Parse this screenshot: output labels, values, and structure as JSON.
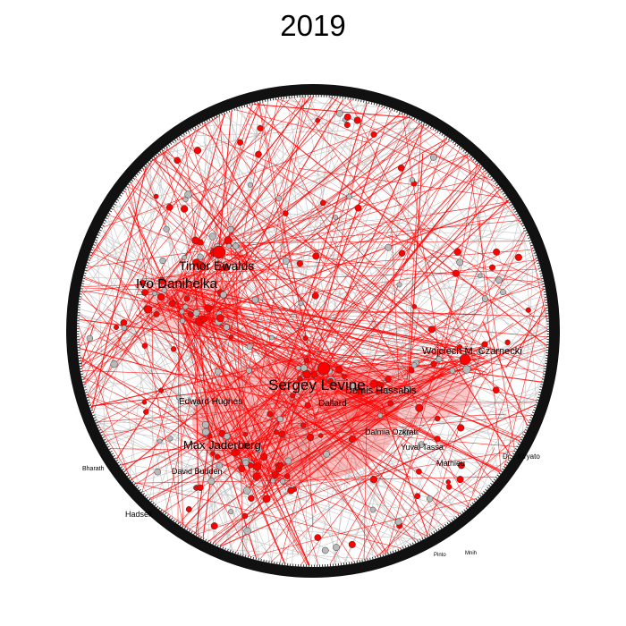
{
  "title": "2019",
  "colors": {
    "highlight": "#ff0000",
    "edge": "#c4c4c4",
    "node": "#b9b9b9",
    "ring": "#111111"
  },
  "labels": {
    "timor": "Timor Ewalds",
    "ivo": "Ivo Danihelka",
    "levine": "Sergey Levine",
    "czarnecki": "Wojciech M. Czarnecki",
    "hassabis": "Demis Hassabis",
    "huang": "Edward Hughes",
    "ballard": "Dallard",
    "jaderberg": "Max Jaderberg",
    "hadsell": "Hadsell",
    "chakraborty": "Dalmia Ozkrati",
    "budden": "David Budden",
    "mnih": "Mnih",
    "pinto": "Pinto",
    "ryato": "Dr... Kiryato",
    "tassa": "Yuval Tassa",
    "mathieu": "Mathieu",
    "bharath": "Bharath"
  }
}
